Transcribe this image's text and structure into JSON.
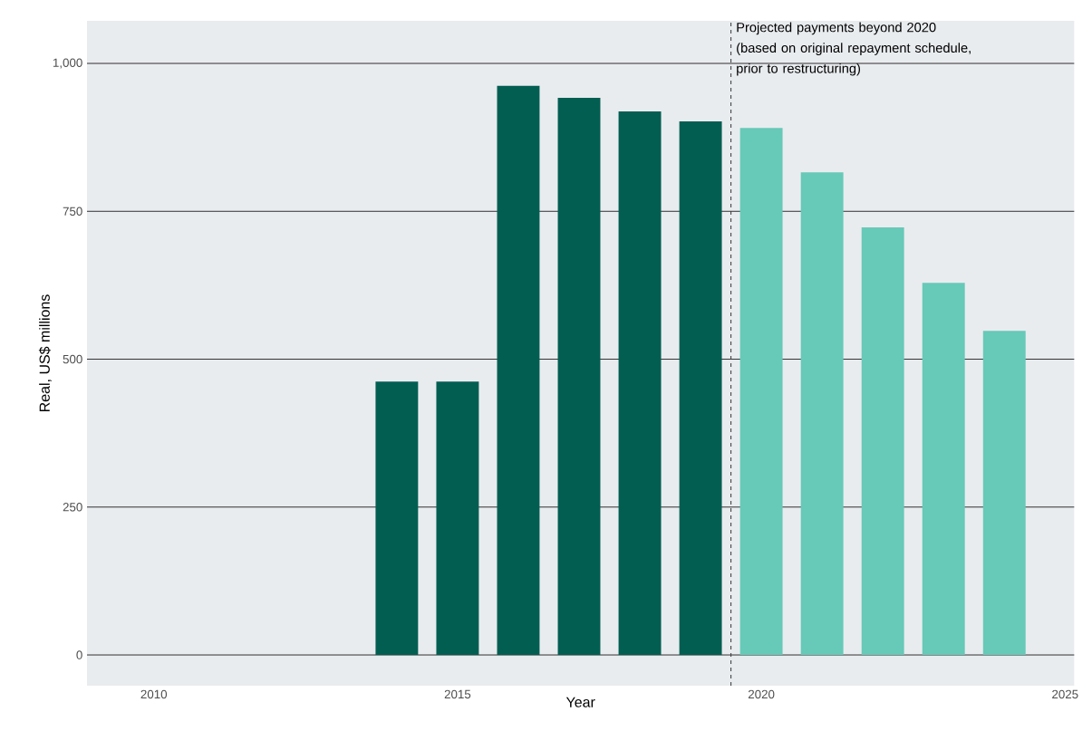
{
  "chart_data": {
    "type": "bar",
    "xlabel": "Year",
    "ylabel": "Real, US$ millions",
    "series": [
      {
        "color": "#035e52",
        "x": [
          2010,
          2011,
          2012,
          2013,
          2014,
          2015,
          2016,
          2017,
          2018,
          2019
        ],
        "values": [
          0,
          0,
          0,
          0,
          462,
          462,
          962,
          942,
          919,
          902
        ]
      },
      {
        "color": "#67c9b8",
        "x": [
          2020,
          2021,
          2022,
          2023,
          2024
        ],
        "values": [
          891,
          816,
          723,
          629,
          548
        ]
      }
    ],
    "xlim": [
      2008.9,
      2025.15
    ],
    "ylim": [
      -52,
      1072
    ],
    "xticks": [
      2010,
      2015,
      2020,
      2025
    ],
    "yticks": [
      0,
      250,
      500,
      750,
      {
        "value": 1000,
        "label": "1,000"
      }
    ],
    "grid": "y",
    "ref_lines": [
      {
        "axis": "x",
        "value": 2019.5,
        "label": "Projected payments beyond 2020 (based on original repayment schedule, prior to restructuring)",
        "color": "#404040",
        "line_style": "dashed"
      }
    ]
  }
}
